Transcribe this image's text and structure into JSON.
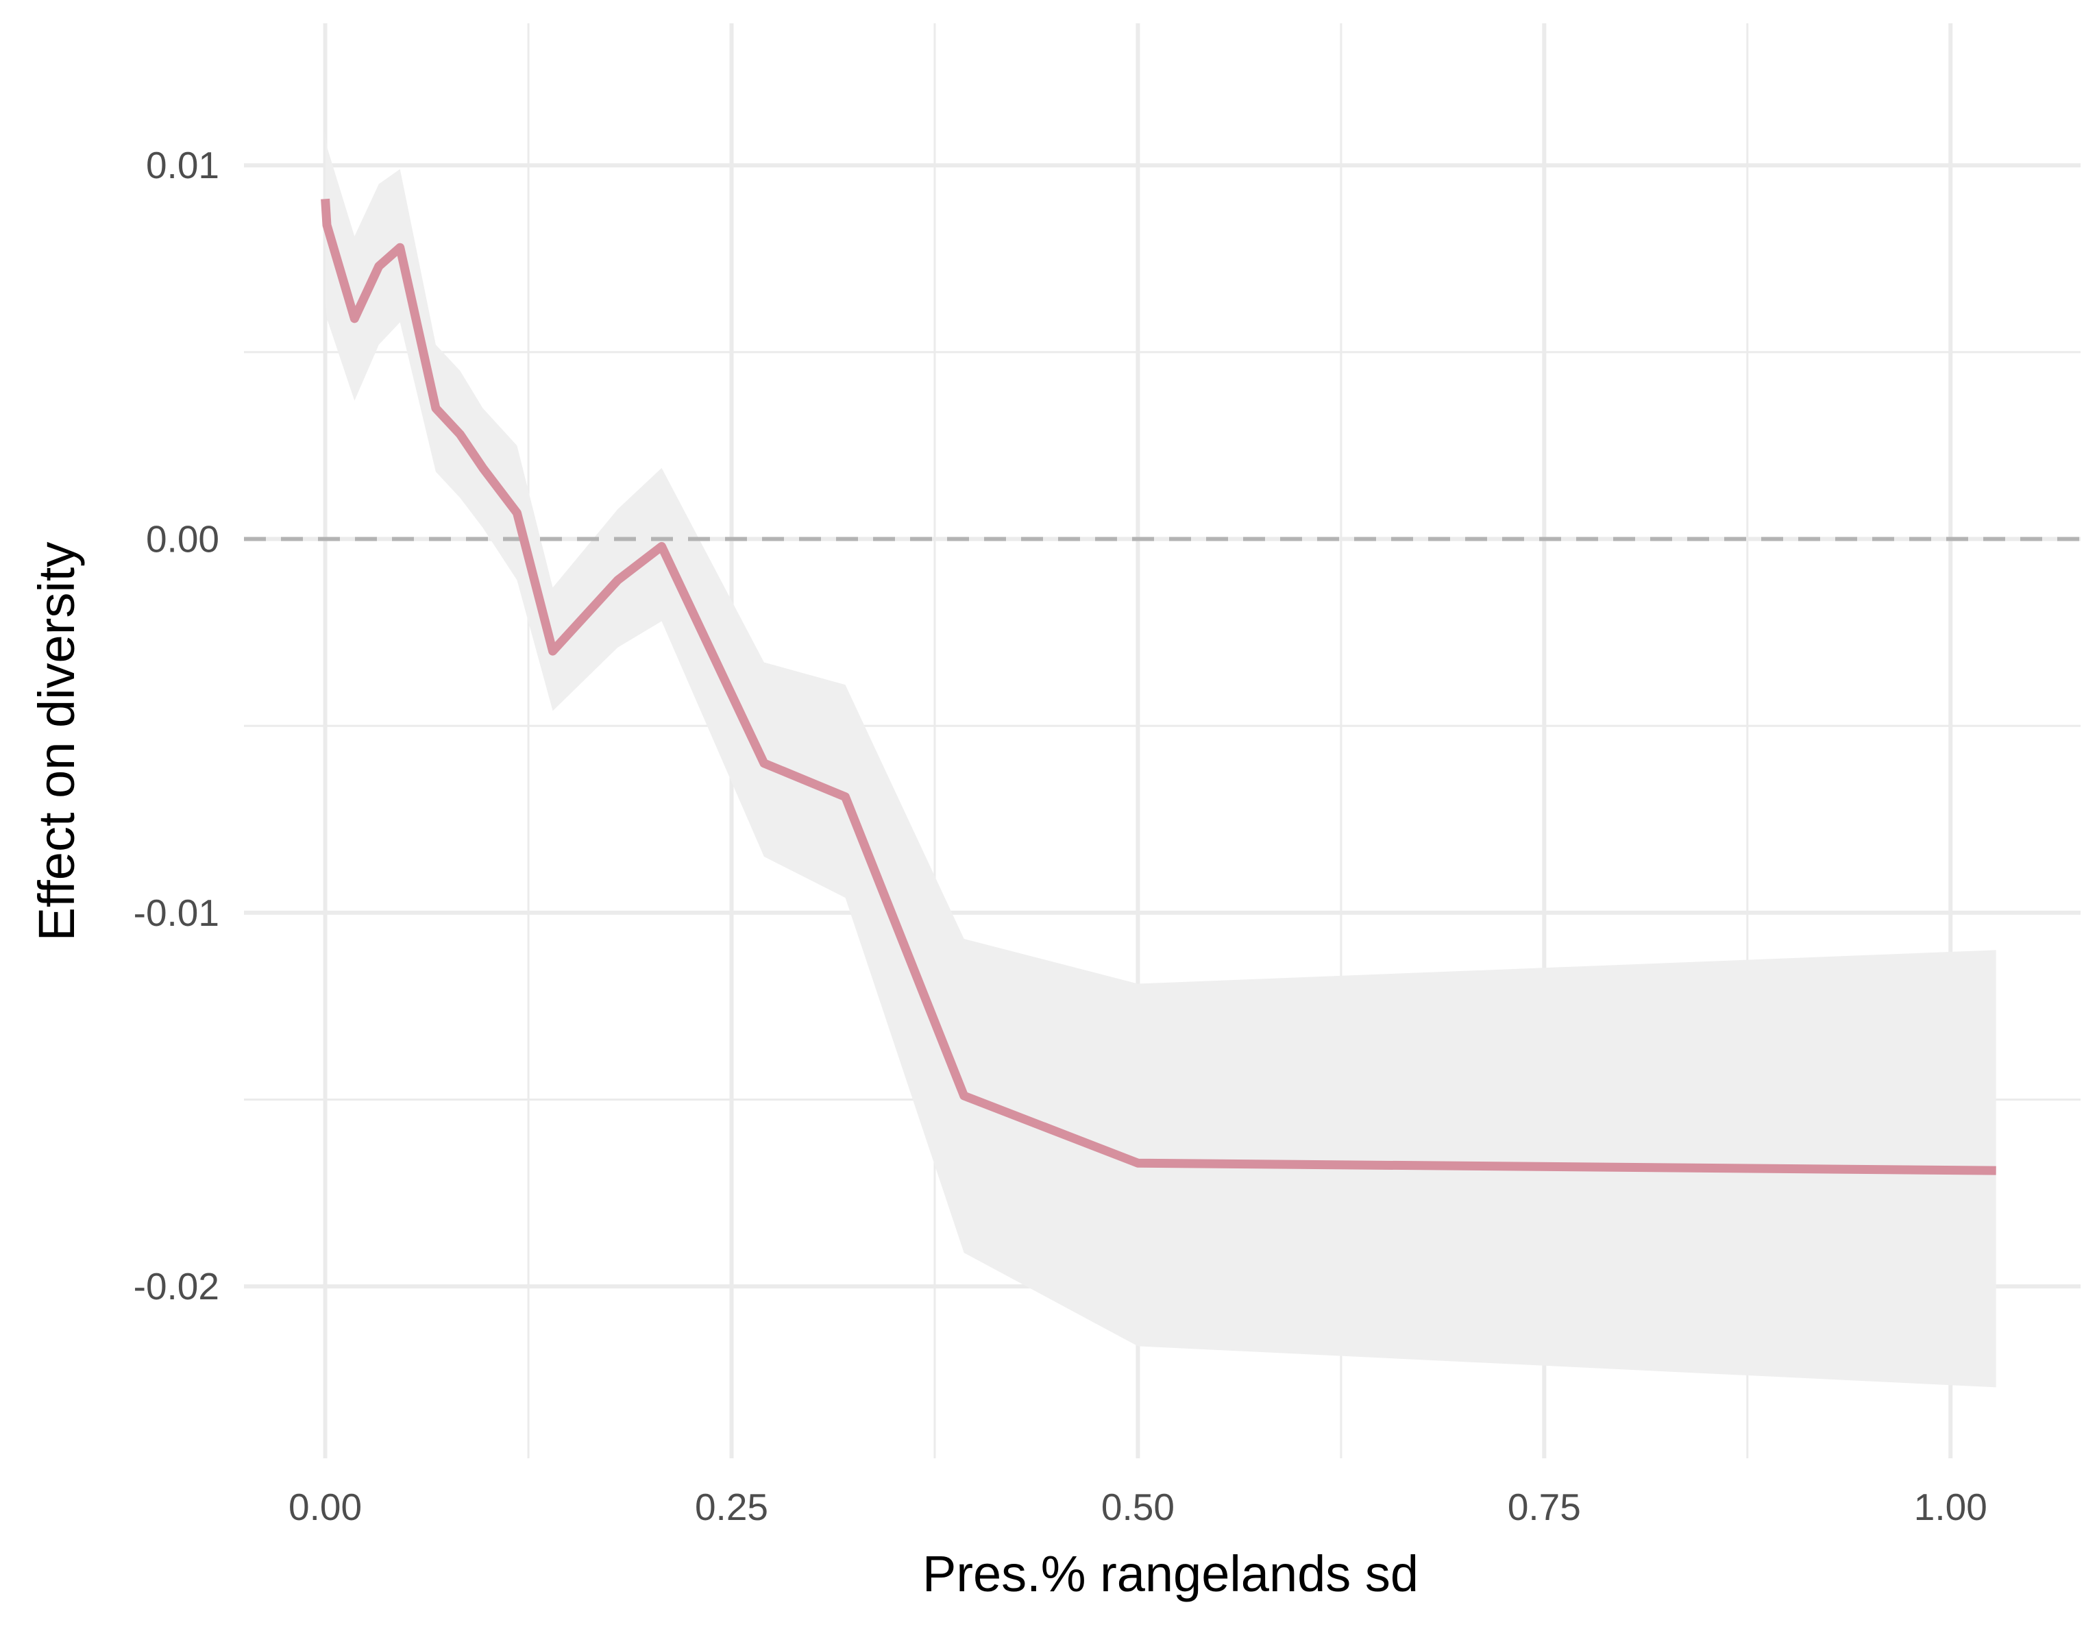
{
  "chart_data": {
    "type": "line",
    "xlabel": "Pres.% rangelands sd",
    "ylabel": "Effect on diversity",
    "xlim": [
      -0.05,
      1.08
    ],
    "ylim": [
      -0.0246,
      0.0138
    ],
    "x_ticks": [
      {
        "value": 0.0,
        "label": "0.00"
      },
      {
        "value": 0.25,
        "label": "0.25"
      },
      {
        "value": 0.5,
        "label": "0.50"
      },
      {
        "value": 0.75,
        "label": "0.75"
      },
      {
        "value": 1.0,
        "label": "1.00"
      }
    ],
    "x_minor_ticks": [
      0.125,
      0.375,
      0.625,
      0.875
    ],
    "y_ticks": [
      {
        "value": 0.01,
        "label": "0.01"
      },
      {
        "value": 0.0,
        "label": "0.00"
      },
      {
        "value": -0.01,
        "label": "-0.01"
      },
      {
        "value": -0.02,
        "label": "-0.02"
      }
    ],
    "y_minor_ticks": [
      0.005,
      -0.005,
      -0.015
    ],
    "grid": true,
    "reference_line": {
      "y": 0.0,
      "style": "dashed",
      "color": "#b3b3b3"
    },
    "colors": {
      "line": "#d6909e",
      "ribbon": "#efefef",
      "grid": "#ebebeb"
    },
    "series": [
      {
        "x": [
          0.0,
          0.001,
          0.018,
          0.033,
          0.046,
          0.068,
          0.083,
          0.097,
          0.118,
          0.14,
          0.18,
          0.207,
          0.27,
          0.32,
          0.393,
          0.5,
          1.028
        ],
        "y": [
          0.0091,
          0.0084,
          0.0059,
          0.0073,
          0.0078,
          0.0035,
          0.0028,
          0.0019,
          0.0007,
          -0.003,
          -0.0011,
          -0.0002,
          -0.006,
          -0.0069,
          -0.0149,
          -0.0167,
          -0.0169
        ],
        "lower": [
          0.0064,
          0.0059,
          0.0037,
          0.0052,
          0.0058,
          0.0018,
          0.0011,
          0.0003,
          -0.0011,
          -0.0046,
          -0.0029,
          -0.0022,
          -0.0085,
          -0.0096,
          -0.0191,
          -0.0216,
          -0.0227
        ],
        "upper": [
          0.0109,
          0.0105,
          0.0081,
          0.0095,
          0.0099,
          0.0052,
          0.0045,
          0.0035,
          0.0025,
          -0.0013,
          0.0008,
          0.0019,
          -0.0033,
          -0.0039,
          -0.0107,
          -0.0119,
          -0.011
        ]
      }
    ]
  }
}
